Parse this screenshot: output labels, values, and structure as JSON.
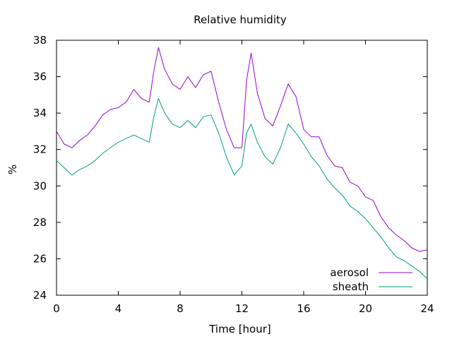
{
  "chart_data": {
    "type": "line",
    "title": "Relative humidity",
    "xlabel": "Time [hour]",
    "ylabel": "%",
    "xlim": [
      0,
      24
    ],
    "ylim": [
      24,
      38
    ],
    "xticks": [
      0,
      4,
      8,
      12,
      16,
      20,
      24
    ],
    "yticks": [
      24,
      26,
      28,
      30,
      32,
      34,
      36,
      38
    ],
    "grid": false,
    "legend_position": "bottom-right",
    "series": [
      {
        "name": "aerosol",
        "color": "#9400d3",
        "x": [
          0,
          0.5,
          1,
          1.5,
          2,
          2.5,
          3,
          3.5,
          4,
          4.5,
          5,
          5.5,
          6,
          6.3,
          6.6,
          7,
          7.5,
          8,
          8.5,
          9,
          9.5,
          10,
          10.5,
          11,
          11.5,
          12,
          12.3,
          12.6,
          13,
          13.5,
          14,
          14.5,
          15,
          15.5,
          16,
          16.5,
          17,
          17.5,
          18,
          18.5,
          19,
          19.5,
          20,
          20.5,
          21,
          21.5,
          22,
          22.5,
          23,
          23.5,
          24
        ],
        "y": [
          33.0,
          32.3,
          32.1,
          32.5,
          32.8,
          33.3,
          33.9,
          34.2,
          34.3,
          34.6,
          35.3,
          34.8,
          34.6,
          36.3,
          37.6,
          36.4,
          35.6,
          35.3,
          36.0,
          35.4,
          36.1,
          36.3,
          34.6,
          33.1,
          32.1,
          32.1,
          35.8,
          37.3,
          35.1,
          33.7,
          33.3,
          34.4,
          35.6,
          34.9,
          33.1,
          32.7,
          32.7,
          31.7,
          31.1,
          31.0,
          30.2,
          30.0,
          29.4,
          29.2,
          28.3,
          27.7,
          27.3,
          27.0,
          26.6,
          26.4,
          26.5
        ]
      },
      {
        "name": "sheath",
        "color": "#009e73",
        "x": [
          0,
          0.5,
          1,
          1.5,
          2,
          2.5,
          3,
          3.5,
          4,
          4.5,
          5,
          5.5,
          6,
          6.3,
          6.6,
          7,
          7.5,
          8,
          8.5,
          9,
          9.5,
          10,
          10.5,
          11,
          11.5,
          12,
          12.3,
          12.6,
          13,
          13.5,
          14,
          14.5,
          15,
          15.5,
          16,
          16.5,
          17,
          17.5,
          18,
          18.5,
          19,
          19.5,
          20,
          20.5,
          21,
          21.5,
          22,
          22.5,
          23,
          23.5,
          24
        ],
        "y": [
          31.4,
          31.0,
          30.6,
          30.9,
          31.1,
          31.4,
          31.8,
          32.1,
          32.4,
          32.6,
          32.8,
          32.6,
          32.4,
          33.8,
          34.8,
          34.0,
          33.4,
          33.2,
          33.6,
          33.2,
          33.8,
          33.9,
          32.9,
          31.6,
          30.6,
          31.1,
          32.9,
          33.4,
          32.4,
          31.6,
          31.2,
          32.1,
          33.4,
          32.9,
          32.3,
          31.6,
          31.1,
          30.4,
          29.9,
          29.5,
          28.9,
          28.6,
          28.2,
          27.7,
          27.2,
          26.6,
          26.1,
          25.9,
          25.6,
          25.3,
          24.9
        ]
      }
    ]
  }
}
